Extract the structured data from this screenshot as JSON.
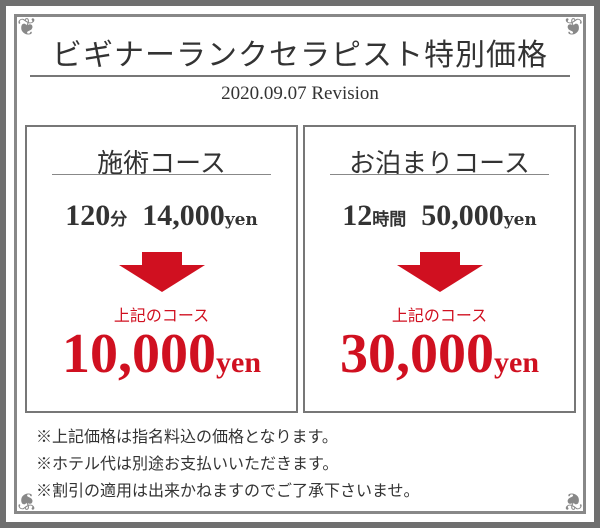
{
  "title": "ビギナーランクセラピスト特別価格",
  "revision": "2020.09.07 Revision",
  "colors": {
    "accent": "#d01020",
    "frame": "#888888",
    "text": "#333333"
  },
  "courses": [
    {
      "name": "施術コース",
      "duration": "120",
      "duration_unit": "分",
      "original_price": "14,000",
      "currency": "yen",
      "arrow": "arrow-down-icon",
      "label": "上記のコース",
      "special_price": "10,000"
    },
    {
      "name": "お泊まりコース",
      "duration": "12",
      "duration_unit": "時間",
      "original_price": "50,000",
      "currency": "yen",
      "arrow": "arrow-down-icon",
      "label": "上記のコース",
      "special_price": "30,000"
    }
  ],
  "notes": [
    "※上記価格は指名料込の価格となります。",
    "※ホテル代は別途お支払いいただきます。",
    "※割引の適用は出来かねますのでご了承下さいませ。"
  ]
}
